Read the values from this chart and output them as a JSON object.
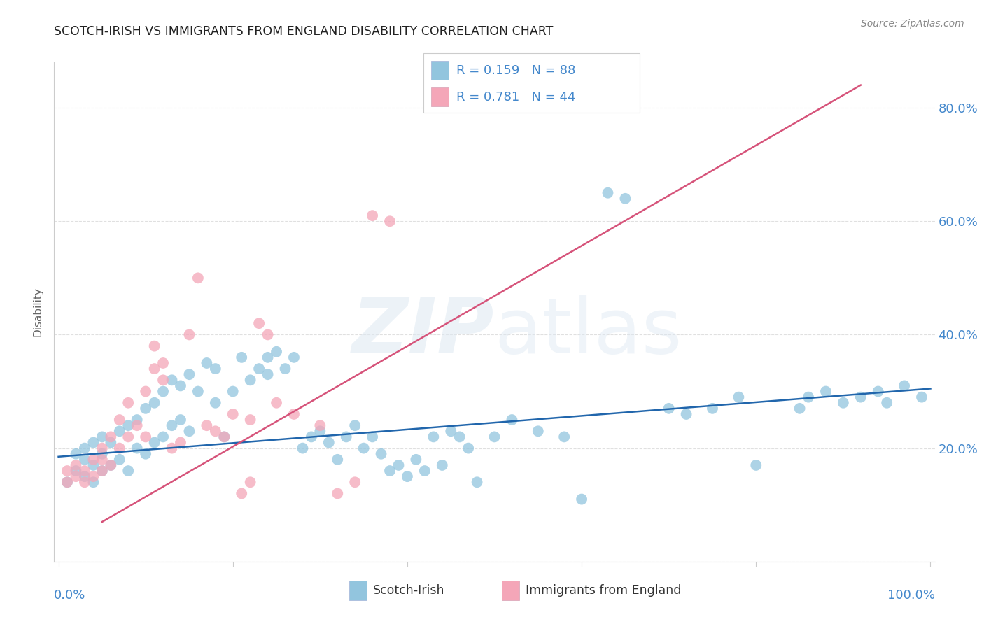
{
  "title": "SCOTCH-IRISH VS IMMIGRANTS FROM ENGLAND DISABILITY CORRELATION CHART",
  "source": "Source: ZipAtlas.com",
  "ylabel": "Disability",
  "yticks": [
    0.0,
    0.2,
    0.4,
    0.6,
    0.8
  ],
  "ytick_labels": [
    "",
    "20.0%",
    "40.0%",
    "60.0%",
    "80.0%"
  ],
  "watermark": "ZIPatlas",
  "blue_color": "#92c5de",
  "pink_color": "#f4a6b8",
  "line_blue": "#2166ac",
  "line_pink": "#d6537a",
  "title_color": "#222222",
  "axis_color": "#4488cc",
  "blue_scatter_x": [
    0.01,
    0.02,
    0.02,
    0.03,
    0.03,
    0.03,
    0.04,
    0.04,
    0.04,
    0.05,
    0.05,
    0.05,
    0.06,
    0.06,
    0.07,
    0.07,
    0.08,
    0.08,
    0.09,
    0.09,
    0.1,
    0.1,
    0.11,
    0.11,
    0.12,
    0.12,
    0.13,
    0.13,
    0.14,
    0.14,
    0.15,
    0.15,
    0.16,
    0.17,
    0.18,
    0.18,
    0.19,
    0.2,
    0.21,
    0.22,
    0.23,
    0.24,
    0.24,
    0.25,
    0.26,
    0.27,
    0.28,
    0.29,
    0.3,
    0.31,
    0.32,
    0.33,
    0.34,
    0.35,
    0.36,
    0.37,
    0.38,
    0.39,
    0.4,
    0.41,
    0.42,
    0.43,
    0.44,
    0.45,
    0.46,
    0.47,
    0.48,
    0.5,
    0.52,
    0.55,
    0.58,
    0.6,
    0.63,
    0.65,
    0.7,
    0.72,
    0.75,
    0.78,
    0.8,
    0.85,
    0.86,
    0.88,
    0.9,
    0.92,
    0.94,
    0.95,
    0.97,
    0.99
  ],
  "blue_scatter_y": [
    0.14,
    0.16,
    0.19,
    0.15,
    0.18,
    0.2,
    0.14,
    0.17,
    0.21,
    0.16,
    0.19,
    0.22,
    0.17,
    0.21,
    0.18,
    0.23,
    0.16,
    0.24,
    0.2,
    0.25,
    0.19,
    0.27,
    0.21,
    0.28,
    0.22,
    0.3,
    0.24,
    0.32,
    0.25,
    0.31,
    0.23,
    0.33,
    0.3,
    0.35,
    0.28,
    0.34,
    0.22,
    0.3,
    0.36,
    0.32,
    0.34,
    0.36,
    0.33,
    0.37,
    0.34,
    0.36,
    0.2,
    0.22,
    0.23,
    0.21,
    0.18,
    0.22,
    0.24,
    0.2,
    0.22,
    0.19,
    0.16,
    0.17,
    0.15,
    0.18,
    0.16,
    0.22,
    0.17,
    0.23,
    0.22,
    0.2,
    0.14,
    0.22,
    0.25,
    0.23,
    0.22,
    0.11,
    0.65,
    0.64,
    0.27,
    0.26,
    0.27,
    0.29,
    0.17,
    0.27,
    0.29,
    0.3,
    0.28,
    0.29,
    0.3,
    0.28,
    0.31,
    0.29
  ],
  "pink_scatter_x": [
    0.01,
    0.01,
    0.02,
    0.02,
    0.03,
    0.03,
    0.04,
    0.04,
    0.05,
    0.05,
    0.05,
    0.06,
    0.06,
    0.07,
    0.07,
    0.08,
    0.08,
    0.09,
    0.1,
    0.1,
    0.11,
    0.11,
    0.12,
    0.12,
    0.13,
    0.14,
    0.15,
    0.16,
    0.17,
    0.18,
    0.19,
    0.2,
    0.21,
    0.22,
    0.22,
    0.23,
    0.24,
    0.25,
    0.27,
    0.3,
    0.32,
    0.34,
    0.36,
    0.38
  ],
  "pink_scatter_y": [
    0.14,
    0.16,
    0.15,
    0.17,
    0.14,
    0.16,
    0.15,
    0.18,
    0.16,
    0.18,
    0.2,
    0.17,
    0.22,
    0.2,
    0.25,
    0.22,
    0.28,
    0.24,
    0.22,
    0.3,
    0.34,
    0.38,
    0.32,
    0.35,
    0.2,
    0.21,
    0.4,
    0.5,
    0.24,
    0.23,
    0.22,
    0.26,
    0.12,
    0.14,
    0.25,
    0.42,
    0.4,
    0.28,
    0.26,
    0.24,
    0.12,
    0.14,
    0.61,
    0.6
  ],
  "blue_line_x": [
    0.0,
    1.0
  ],
  "blue_line_y": [
    0.185,
    0.305
  ],
  "pink_line_x": [
    0.05,
    0.92
  ],
  "pink_line_y": [
    0.07,
    0.84
  ],
  "xlim": [
    -0.005,
    1.005
  ],
  "ylim": [
    0.0,
    0.88
  ],
  "grid_color": "#dddddd",
  "spine_color": "#cccccc"
}
